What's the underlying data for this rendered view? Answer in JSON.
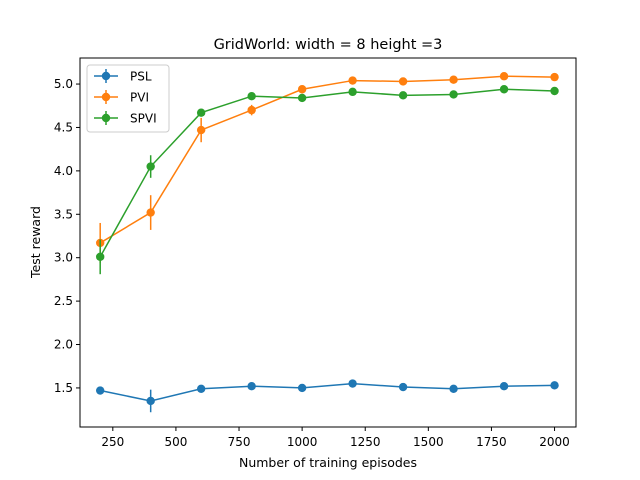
{
  "chart_data": {
    "type": "line",
    "title": "GridWorld: width = 8 height =3",
    "xlabel": "Number of training episodes",
    "ylabel": "Test reward",
    "xlim": [
      120,
      2085
    ],
    "ylim": [
      1.05,
      5.3
    ],
    "xticks": [
      250,
      500,
      750,
      1000,
      1250,
      1500,
      1750,
      2000
    ],
    "xtick_labels": [
      "250",
      "500",
      "750",
      "1000",
      "1250",
      "1500",
      "1750",
      "2000"
    ],
    "yticks": [
      1.5,
      2.0,
      2.5,
      3.0,
      3.5,
      4.0,
      4.5,
      5.0
    ],
    "ytick_labels": [
      "1.5",
      "2.0",
      "2.5",
      "3.0",
      "3.5",
      "4.0",
      "4.5",
      "5.0"
    ],
    "grid": false,
    "legend_position": "top-left",
    "x": [
      200,
      400,
      600,
      800,
      1000,
      1200,
      1400,
      1600,
      1800,
      2000
    ],
    "series": [
      {
        "name": "PSL",
        "color": "#1f77b4",
        "values": [
          1.47,
          1.35,
          1.49,
          1.52,
          1.5,
          1.55,
          1.51,
          1.49,
          1.52,
          1.53
        ],
        "errors": [
          0.02,
          0.13,
          0.02,
          0.02,
          0.02,
          0.02,
          0.02,
          0.02,
          0.02,
          0.02
        ]
      },
      {
        "name": "PVI",
        "color": "#ff7f0e",
        "values": [
          3.17,
          3.52,
          4.47,
          4.7,
          4.94,
          5.04,
          5.03,
          5.05,
          5.09,
          5.08
        ],
        "errors": [
          0.23,
          0.2,
          0.14,
          0.06,
          0.02,
          0.02,
          0.02,
          0.02,
          0.02,
          0.02
        ]
      },
      {
        "name": "SPVI",
        "color": "#2ca02c",
        "values": [
          3.01,
          4.05,
          4.67,
          4.86,
          4.84,
          4.91,
          4.87,
          4.88,
          4.94,
          4.92
        ],
        "errors": [
          0.2,
          0.13,
          0.04,
          0.02,
          0.02,
          0.02,
          0.02,
          0.02,
          0.02,
          0.02
        ]
      }
    ]
  }
}
